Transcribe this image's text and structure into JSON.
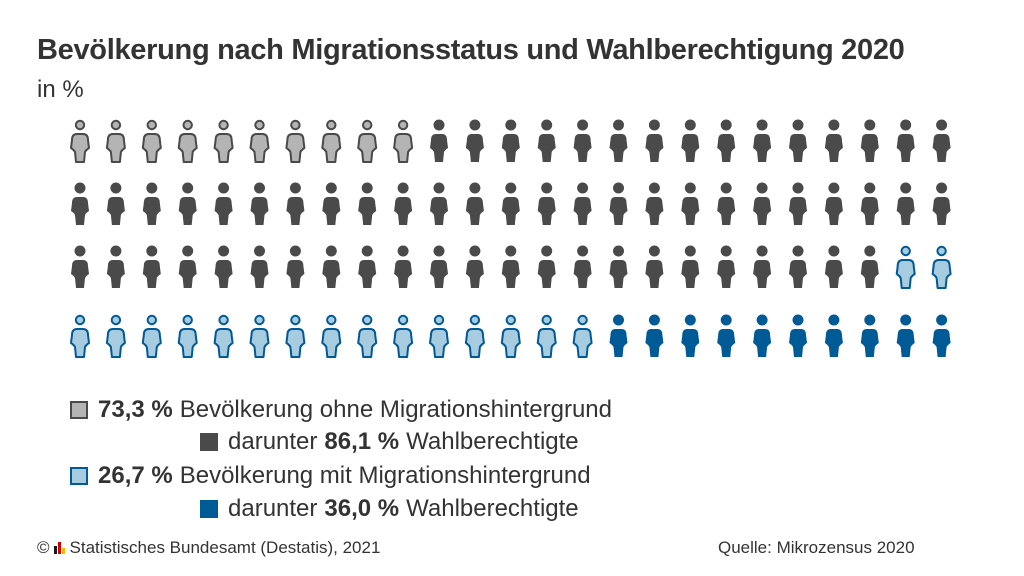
{
  "title": "Bevölkerung nach Migrationsstatus und Wahlberechtigung 2020",
  "subtitle": "in %",
  "colors": {
    "grey_light": "#b4b4b4",
    "grey_dark": "#4a4a4a",
    "blue_light": "#a7cce0",
    "blue_dark": "#005a96"
  },
  "chart_data": {
    "type": "pictogram",
    "icon": "person-icon",
    "rows": 4,
    "columns": 25,
    "total_icons": 100,
    "icon_counts": [
      {
        "group": "ohne Migrationshintergrund, nicht wahlberechtigt",
        "count": 10,
        "color": "#b4b4b4"
      },
      {
        "group": "ohne Migrationshintergrund, wahlberechtigt",
        "count": 63,
        "color": "#4a4a4a"
      },
      {
        "group": "mit Migrationshintergrund, nicht wahlberechtigt",
        "count": 17,
        "color": "#a7cce0"
      },
      {
        "group": "mit Migrationshintergrund, wahlberechtigt",
        "count": 10,
        "color": "#005a96"
      }
    ],
    "series": [
      {
        "name": "Bevölkerung ohne Migrationshintergrund",
        "value": 73.3,
        "unit": "%"
      },
      {
        "name": "darunter Wahlberechtigte",
        "value": 86.1,
        "unit": "%"
      },
      {
        "name": "Bevölkerung mit Migrationshintergrund",
        "value": 26.7,
        "unit": "%"
      },
      {
        "name": "darunter Wahlberechtigte",
        "value": 36.0,
        "unit": "%"
      }
    ]
  },
  "legend": [
    {
      "value": "73,3 %",
      "label": "Bevölkerung ohne Migrationshintergrund"
    },
    {
      "prefix": "darunter",
      "value": "86,1 %",
      "label": "Wahlberechtigte"
    },
    {
      "value": "26,7 %",
      "label": "Bevölkerung mit Migrationshintergrund"
    },
    {
      "prefix": "darunter",
      "value": "36,0 %",
      "label": "Wahlberechtigte"
    }
  ],
  "footer": {
    "copyright": "©",
    "publisher": "Statistisches Bundesamt (Destatis), 2021",
    "source": "Quelle: Mikrozensus 2020"
  }
}
